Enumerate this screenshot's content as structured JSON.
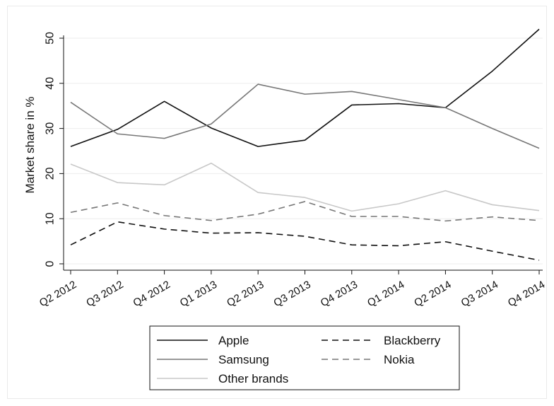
{
  "chart_data": {
    "type": "line",
    "title": "",
    "xlabel": "",
    "ylabel": "Market share in %",
    "ylim": [
      0,
      52
    ],
    "yticks": [
      0,
      10,
      20,
      30,
      40,
      50
    ],
    "grid": true,
    "categories": [
      "Q2 2012",
      "Q3 2012",
      "Q4 2012",
      "Q1 2013",
      "Q2 2013",
      "Q3 2013",
      "Q4 2013",
      "Q1 2014",
      "Q2 2014",
      "Q3 2014",
      "Q4 2014"
    ],
    "legend_position": "bottom",
    "series": [
      {
        "name": "Apple",
        "color": "#111111",
        "dash": "solid",
        "values": [
          26.0,
          29.8,
          36.0,
          30.1,
          26.0,
          27.4,
          35.2,
          35.5,
          34.6,
          42.7,
          52.0
        ]
      },
      {
        "name": "Samsung",
        "color": "#777777",
        "dash": "solid",
        "values": [
          35.8,
          28.8,
          27.8,
          31.0,
          39.8,
          37.6,
          38.2,
          36.4,
          34.6,
          30.0,
          25.6
        ]
      },
      {
        "name": "Other brands",
        "color": "#c8c8c8",
        "dash": "solid",
        "values": [
          22.1,
          18.0,
          17.5,
          22.3,
          15.8,
          14.7,
          11.7,
          13.3,
          16.2,
          13.1,
          11.8
        ]
      },
      {
        "name": "Blackberry",
        "color": "#111111",
        "dash": "dashed",
        "values": [
          4.2,
          9.3,
          7.7,
          6.8,
          6.9,
          6.1,
          4.2,
          4.0,
          4.9,
          2.8,
          0.8
        ]
      },
      {
        "name": "Nokia",
        "color": "#777777",
        "dash": "dashed",
        "values": [
          11.4,
          13.5,
          10.7,
          9.6,
          11.0,
          13.8,
          10.5,
          10.5,
          9.5,
          10.4,
          9.6
        ]
      }
    ],
    "legend_order": [
      "Apple",
      "Blackberry",
      "Samsung",
      "Nokia",
      "Other brands"
    ]
  }
}
